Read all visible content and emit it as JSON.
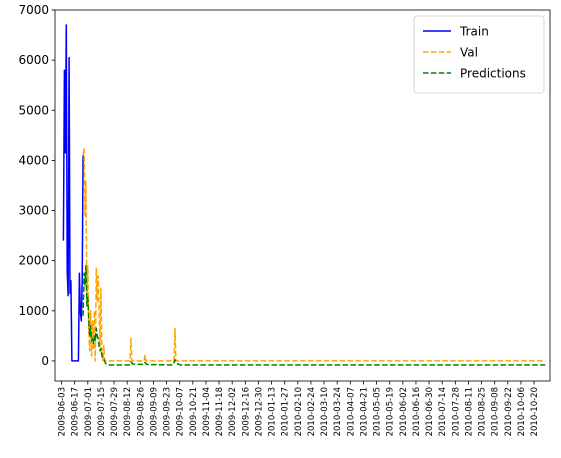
{
  "chart_data": {
    "type": "line",
    "title": "",
    "xlabel": "",
    "ylabel": "",
    "x_tick_labels": [
      "2009-06-03",
      "2009-06-17",
      "2009-07-01",
      "2009-07-15",
      "2009-07-29",
      "2009-08-12",
      "2009-08-26",
      "2009-09-09",
      "2009-09-23",
      "2009-10-07",
      "2009-10-21",
      "2009-11-04",
      "2009-11-18",
      "2009-12-02",
      "2009-12-16",
      "2009-12-30",
      "2010-01-13",
      "2010-01-27",
      "2010-02-10",
      "2010-02-24",
      "2010-03-10",
      "2010-03-24",
      "2010-04-07",
      "2010-04-21",
      "2010-05-05",
      "2010-05-19",
      "2010-06-02",
      "2010-06-16",
      "2010-06-30",
      "2010-07-14",
      "2010-07-28",
      "2010-08-11",
      "2010-08-25",
      "2010-09-08",
      "2010-09-22",
      "2010-10-06",
      "2010-10-20"
    ],
    "xlim": [
      "2009-05-27",
      "2010-11-06"
    ],
    "y_ticks": [
      0,
      1000,
      2000,
      3000,
      4000,
      5000,
      6000,
      7000
    ],
    "ylim": [
      -400,
      7000
    ],
    "grid": false,
    "legend_position": "top-right",
    "series": [
      {
        "name": "Train",
        "color": "#0000ff",
        "style": "solid",
        "points": [
          [
            "2009-06-05",
            2400
          ],
          [
            "2009-06-06",
            5800
          ],
          [
            "2009-06-07",
            4150
          ],
          [
            "2009-06-08",
            6700
          ],
          [
            "2009-06-09",
            1800
          ],
          [
            "2009-06-10",
            1300
          ],
          [
            "2009-06-11",
            6050
          ],
          [
            "2009-06-12",
            1350
          ],
          [
            "2009-06-13",
            1600
          ],
          [
            "2009-06-14",
            0
          ],
          [
            "2009-06-15",
            0
          ],
          [
            "2009-06-16",
            0
          ],
          [
            "2009-06-17",
            0
          ],
          [
            "2009-06-18",
            0
          ],
          [
            "2009-06-19",
            0
          ],
          [
            "2009-06-20",
            0
          ],
          [
            "2009-06-21",
            0
          ],
          [
            "2009-06-22",
            1750
          ],
          [
            "2009-06-23",
            1000
          ],
          [
            "2009-06-24",
            800
          ],
          [
            "2009-06-25",
            1600
          ],
          [
            "2009-06-26",
            4100
          ]
        ]
      },
      {
        "name": "Val",
        "color": "#ffa500",
        "style": "dashed",
        "points": [
          [
            "2009-06-26",
            4100
          ],
          [
            "2009-06-27",
            4250
          ],
          [
            "2009-06-28",
            2900
          ],
          [
            "2009-06-29",
            3600
          ],
          [
            "2009-06-30",
            1200
          ],
          [
            "2009-07-01",
            1900
          ],
          [
            "2009-07-02",
            600
          ],
          [
            "2009-07-03",
            200
          ],
          [
            "2009-07-04",
            1000
          ],
          [
            "2009-07-05",
            100
          ],
          [
            "2009-07-06",
            800
          ],
          [
            "2009-07-07",
            250
          ],
          [
            "2009-07-08",
            1000
          ],
          [
            "2009-07-09",
            0
          ],
          [
            "2009-07-10",
            1850
          ],
          [
            "2009-07-11",
            1200
          ],
          [
            "2009-07-12",
            1700
          ],
          [
            "2009-07-13",
            1000
          ],
          [
            "2009-07-14",
            300
          ],
          [
            "2009-07-15",
            1450
          ],
          [
            "2009-07-16",
            200
          ],
          [
            "2009-07-17",
            0
          ],
          [
            "2009-07-18",
            300
          ],
          [
            "2009-07-19",
            0
          ],
          [
            "2009-07-20",
            0
          ],
          [
            "2009-08-15",
            0
          ],
          [
            "2009-08-16",
            450
          ],
          [
            "2009-08-17",
            0
          ],
          [
            "2009-08-30",
            0
          ],
          [
            "2009-08-31",
            120
          ],
          [
            "2009-09-01",
            0
          ],
          [
            "2009-10-01",
            0
          ],
          [
            "2009-10-02",
            650
          ],
          [
            "2009-10-03",
            0
          ],
          [
            "2010-11-01",
            0
          ]
        ]
      },
      {
        "name": "Predictions",
        "color": "#008000",
        "style": "dashed",
        "points": [
          [
            "2009-06-26",
            900
          ],
          [
            "2009-06-27",
            1750
          ],
          [
            "2009-06-28",
            1500
          ],
          [
            "2009-06-29",
            1900
          ],
          [
            "2009-06-30",
            1100
          ],
          [
            "2009-07-01",
            1300
          ],
          [
            "2009-07-02",
            800
          ],
          [
            "2009-07-03",
            500
          ],
          [
            "2009-07-04",
            700
          ],
          [
            "2009-07-05",
            400
          ],
          [
            "2009-07-06",
            450
          ],
          [
            "2009-07-07",
            350
          ],
          [
            "2009-07-08",
            500
          ],
          [
            "2009-07-09",
            400
          ],
          [
            "2009-07-10",
            650
          ],
          [
            "2009-07-11",
            500
          ],
          [
            "2009-07-12",
            450
          ],
          [
            "2009-07-13",
            300
          ],
          [
            "2009-07-14",
            200
          ],
          [
            "2009-07-15",
            250
          ],
          [
            "2009-07-16",
            100
          ],
          [
            "2009-07-18",
            50
          ],
          [
            "2009-07-20",
            -50
          ],
          [
            "2009-07-23",
            -80
          ],
          [
            "2009-08-14",
            -80
          ],
          [
            "2009-08-16",
            -20
          ],
          [
            "2009-08-18",
            -60
          ],
          [
            "2009-08-30",
            -70
          ],
          [
            "2009-08-31",
            -30
          ],
          [
            "2009-09-02",
            -70
          ],
          [
            "2009-09-30",
            -80
          ],
          [
            "2009-10-02",
            20
          ],
          [
            "2009-10-04",
            -50
          ],
          [
            "2009-10-08",
            -80
          ],
          [
            "2010-11-01",
            -80
          ]
        ]
      }
    ]
  }
}
